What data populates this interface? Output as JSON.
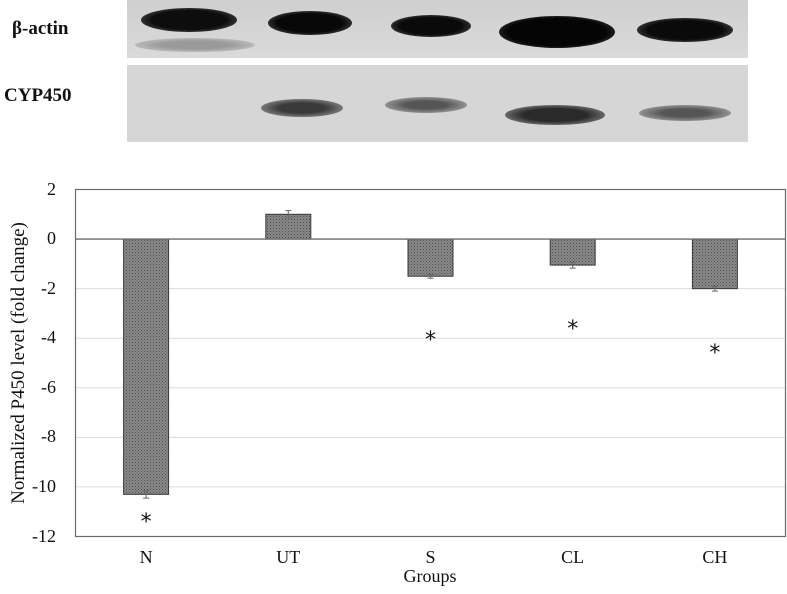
{
  "blot": {
    "labels": [
      "β-actin",
      "CYP450"
    ],
    "lanes": [
      "N",
      "UT",
      "S",
      "CL",
      "CH"
    ]
  },
  "chart_data": {
    "type": "bar",
    "title": "",
    "xlabel": "Groups",
    "ylabel": "Normalized P450 level (fold change)",
    "categories": [
      "N",
      "UT",
      "S",
      "CL",
      "CH"
    ],
    "values": [
      -10.3,
      1.0,
      -1.5,
      -1.05,
      -2.0
    ],
    "error": [
      0.15,
      0.15,
      0.08,
      0.12,
      0.1
    ],
    "significance": [
      "*",
      "",
      "*",
      "*",
      "*"
    ],
    "ylim": [
      -12,
      2
    ],
    "yticks": [
      "2",
      "0",
      "-2",
      "-4",
      "-6",
      "-8",
      "-10",
      "-12"
    ],
    "grid": true,
    "legend": "none",
    "bar_fill": "#7a7a7a"
  }
}
